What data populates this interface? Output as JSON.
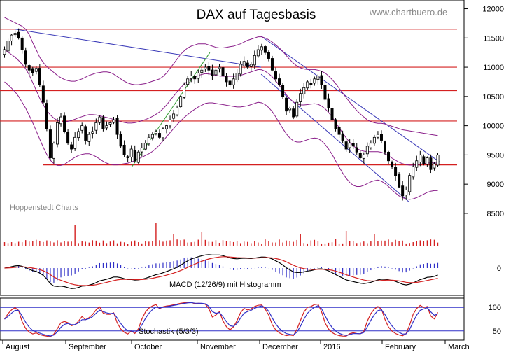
{
  "chart_data": {
    "type": "candlestick",
    "title": "DAX auf Tagesbasis",
    "watermark": "www.chartbuero.de",
    "source_note": "Hoppenstedt Charts",
    "price_axis": {
      "ticks": [
        8500,
        9000,
        9500,
        10000,
        10500,
        11000,
        11500,
        12000
      ],
      "range": [
        8200,
        12150
      ]
    },
    "months": [
      "August",
      "September",
      "October",
      "November",
      "December",
      "2016",
      "February",
      "March"
    ],
    "horizontal_levels": [
      11650,
      11000,
      10600,
      10080,
      9330
    ],
    "trend_channels": [
      {
        "name": "downtrend-line-main",
        "from": [
          "2015-08-03",
          11650
        ],
        "to": [
          "2015-12-01",
          11000
        ],
        "color": "#3a3ab8"
      },
      {
        "name": "downtrend-channel-upper",
        "from": [
          "2015-12-01",
          11530
        ],
        "to": [
          "2016-02-26",
          9380
        ],
        "color": "#3a3ab8"
      },
      {
        "name": "downtrend-channel-lower",
        "from": [
          "2015-12-01",
          10880
        ],
        "to": [
          "2016-02-11",
          8700
        ],
        "color": "#3a3ab8"
      },
      {
        "name": "uptrend-line",
        "from": [
          "2015-09-29",
          9300
        ],
        "to": [
          "2015-11-06",
          11250
        ],
        "color": "#2e9a2e"
      }
    ],
    "close_path": [
      11300,
      11450,
      11550,
      11580,
      11500,
      11300,
      11050,
      10950,
      10900,
      10980,
      10700,
      10400,
      9950,
      9450,
      9700,
      10050,
      10150,
      9900,
      9700,
      9600,
      9800,
      9900,
      10000,
      9750,
      9850,
      9900,
      10050,
      10150,
      9950,
      10000,
      10050,
      10100,
      9850,
      9650,
      9500,
      9450,
      9600,
      9400,
      9550,
      9620,
      9700,
      9800,
      9850,
      9900,
      9800,
      9950,
      10000,
      10100,
      10200,
      10300,
      10500,
      10700,
      10800,
      10850,
      10800,
      10900,
      10950,
      11000,
      10950,
      10850,
      10950,
      11000,
      10850,
      10750,
      10700,
      10800,
      10900,
      11050,
      11100,
      11000,
      11050,
      11200,
      11300,
      11350,
      11250,
      11150,
      10950,
      10800,
      10700,
      10500,
      10250,
      10300,
      10150,
      10400,
      10550,
      10650,
      10750,
      10700,
      10800,
      10850,
      10700,
      10450,
      10300,
      10100,
      9950,
      9850,
      9750,
      9600,
      9700,
      9650,
      9550,
      9450,
      9500,
      9650,
      9700,
      9800,
      9850,
      9750,
      9550,
      9400,
      9300,
      9150,
      8950,
      8800,
      8900,
      9150,
      9300,
      9400,
      9500,
      9350,
      9450,
      9250,
      9350,
      9500
    ],
    "bollinger": {
      "upper": [
        11850,
        11820,
        11790,
        11760,
        11730,
        11700,
        11650,
        11560,
        11420,
        11300,
        11170,
        11080,
        11010,
        10960,
        10910,
        10860,
        10820,
        10790,
        10770,
        10760,
        10760,
        10780,
        10800,
        10830,
        10860,
        10880,
        10900,
        10910,
        10920,
        10920,
        10910,
        10880,
        10840,
        10800,
        10760,
        10730,
        10710,
        10700,
        10700,
        10710,
        10720,
        10740,
        10760,
        10780,
        10800,
        10840,
        10900,
        10980,
        11060,
        11140,
        11220,
        11280,
        11330,
        11360,
        11380,
        11400,
        11400,
        11400,
        11380,
        11360,
        11340,
        11330,
        11330,
        11340,
        11350,
        11360,
        11380,
        11400,
        11430,
        11460,
        11480,
        11500,
        11520,
        11520,
        11500,
        11470,
        11430,
        11380,
        11330,
        11270,
        11200,
        11130,
        11070,
        11020,
        10990,
        10970,
        10960,
        10960,
        10960,
        10950,
        10930,
        10900,
        10850,
        10790,
        10720,
        10640,
        10560,
        10480,
        10400,
        10330,
        10260,
        10200,
        10150,
        10100,
        10070,
        10050,
        10040,
        10040,
        10030,
        10010,
        9990,
        9970,
        9950,
        9930,
        9920,
        9910,
        9900,
        9890,
        9880,
        9870,
        9860,
        9850,
        9840,
        9830
      ],
      "lower": [
        10750,
        10700,
        10640,
        10580,
        10500,
        10400,
        10300,
        10180,
        10050,
        9910,
        9770,
        9630,
        9510,
        9410,
        9350,
        9320,
        9320,
        9340,
        9380,
        9420,
        9460,
        9490,
        9510,
        9520,
        9520,
        9500,
        9470,
        9430,
        9390,
        9360,
        9340,
        9330,
        9330,
        9340,
        9350,
        9360,
        9380,
        9400,
        9430,
        9460,
        9490,
        9520,
        9560,
        9610,
        9670,
        9740,
        9810,
        9880,
        9950,
        10020,
        10080,
        10140,
        10190,
        10240,
        10280,
        10320,
        10350,
        10380,
        10390,
        10390,
        10380,
        10370,
        10360,
        10350,
        10340,
        10330,
        10320,
        10320,
        10330,
        10340,
        10360,
        10380,
        10400,
        10390,
        10360,
        10310,
        10240,
        10150,
        10050,
        9950,
        9860,
        9790,
        9740,
        9720,
        9720,
        9740,
        9760,
        9780,
        9790,
        9780,
        9740,
        9680,
        9600,
        9510,
        9400,
        9290,
        9190,
        9100,
        9030,
        8980,
        8960,
        8960,
        8980,
        9010,
        9040,
        9060,
        9070,
        9050,
        9010,
        8960,
        8900,
        8850,
        8800,
        8770,
        8750,
        8740,
        8750,
        8770,
        8800,
        8830,
        8860,
        8880,
        8890,
        8890
      ]
    },
    "volume": {
      "color": "#d42020"
    },
    "macd": {
      "label": "MACD (12/26/9) mit Histogramm",
      "zero_tick": "0",
      "macd_color": "#000000",
      "signal_color": "#d42020",
      "histogram_color": "#3030c8"
    },
    "stochastic": {
      "label": "Stochastik (5/3/3)",
      "ticks": [
        "100",
        "50"
      ],
      "k_color": "#d42020",
      "d_color": "#3030c8",
      "bands": [
        80,
        20
      ]
    }
  }
}
